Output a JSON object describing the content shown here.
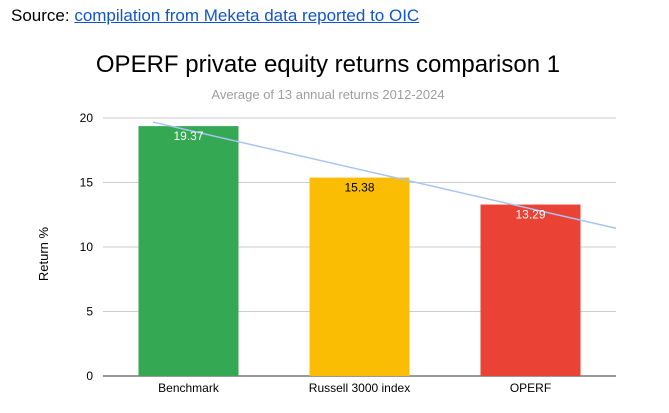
{
  "source": {
    "prefix": "Source: ",
    "link_text": "compilation from Meketa data reported to OIC"
  },
  "chart_data": {
    "type": "bar",
    "title": "OPERF private equity returns comparison 1",
    "subtitle": "Average of 13 annual returns 2012-2024",
    "xlabel": "",
    "ylabel": "Return %",
    "categories": [
      "Benchmark",
      "Russell 3000 index",
      "OPERF"
    ],
    "values": [
      19.37,
      15.38,
      13.29
    ],
    "data_labels": [
      "19.37",
      "15.38",
      "13.29"
    ],
    "bar_colors": [
      "#34a853",
      "#fbbc04",
      "#ea4335"
    ],
    "label_colors": [
      "#ffffff",
      "#000000",
      "#ffffff"
    ],
    "ylim": [
      0,
      20
    ],
    "yticks": [
      0,
      5,
      10,
      15,
      20
    ],
    "grid": true,
    "trendline": {
      "type": "linear",
      "color": "#a7c4f2"
    },
    "legend": "none"
  }
}
